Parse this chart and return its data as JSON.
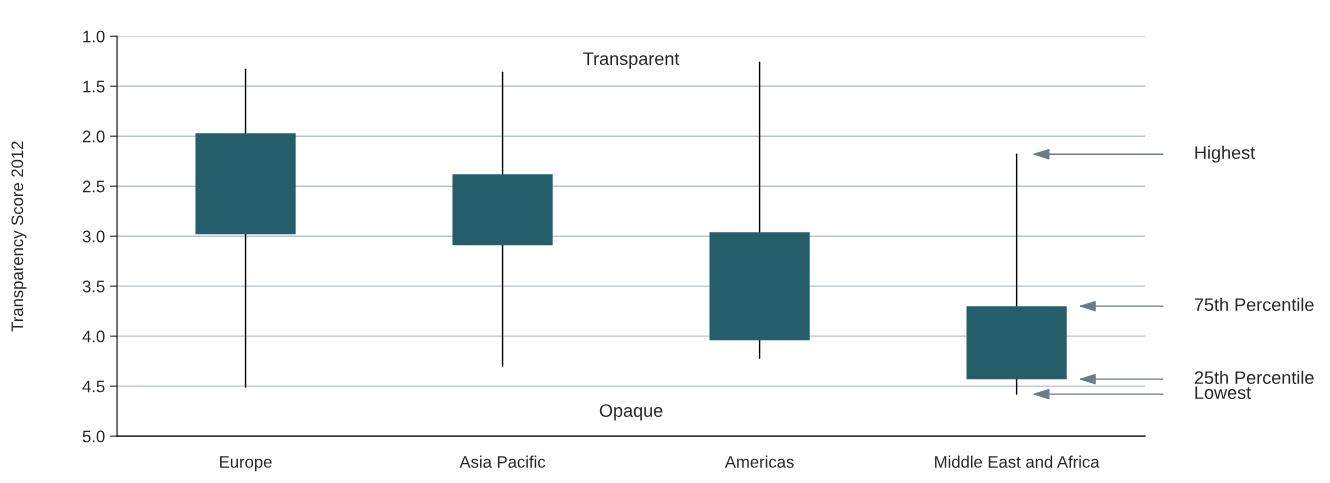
{
  "chart_data": {
    "type": "candlestick",
    "ylabel": "Transparency Score 2012",
    "categories": [
      "Europe",
      "Asia Pacific",
      "Americas",
      "Middle East and Africa"
    ],
    "ohlc": [
      [
        1.97,
        4.51,
        1.33,
        2.98
      ],
      [
        2.38,
        4.3,
        1.36,
        3.09
      ],
      [
        2.96,
        4.22,
        1.26,
        4.04
      ],
      [
        3.7,
        4.58,
        2.18,
        4.43
      ]
    ],
    "color": "#245e6b",
    "ylim": [
      5.0,
      1.0
    ],
    "yticks": [
      {
        "value": 1,
        "label": "1.0"
      },
      1.5,
      {
        "value": 2,
        "label": "2.0"
      },
      2.5,
      {
        "value": 3,
        "label": "3.0"
      },
      3.5,
      {
        "value": 4,
        "label": "4.0"
      },
      4.5,
      {
        "value": 5,
        "label": "5.0"
      }
    ],
    "grid": "y",
    "annotations": [
      "Transparent",
      "Opaque",
      "Highest",
      "75th Percentile",
      "25th Percentile",
      "Lowest"
    ]
  }
}
